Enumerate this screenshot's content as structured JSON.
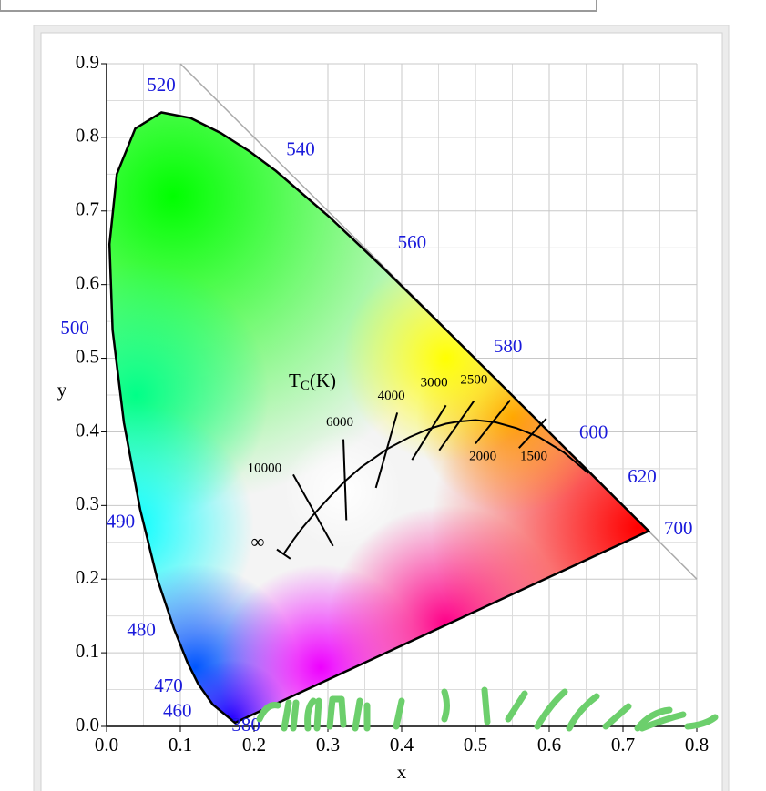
{
  "chart_data": {
    "type": "chromaticity",
    "xlabel": "x",
    "ylabel": "y",
    "xlim": [
      0,
      0.8
    ],
    "ylim": [
      0,
      0.9
    ],
    "xticks": [
      {
        "value": 0,
        "label": "0.0"
      },
      0.1,
      0.2,
      0.3,
      0.4,
      0.5,
      0.6,
      0.7,
      0.8
    ],
    "yticks": [
      {
        "value": 0,
        "label": "0.0"
      },
      0.1,
      0.2,
      0.3,
      0.4,
      0.5,
      0.6,
      0.7,
      0.8,
      0.9
    ],
    "grid": true,
    "spectral_locus": {
      "x": [
        0.1741,
        0.144,
        0.1241,
        0.1096,
        0.0913,
        0.0687,
        0.0454,
        0.0235,
        0.0082,
        0.0039,
        0.0139,
        0.0389,
        0.0743,
        0.1142,
        0.1547,
        0.1929,
        0.2296,
        0.3016,
        0.3731,
        0.4441,
        0.5125,
        0.5752,
        0.627,
        0.6658,
        0.6915,
        0.719,
        0.7347
      ],
      "y": [
        0.005,
        0.0297,
        0.0578,
        0.0868,
        0.1327,
        0.2007,
        0.295,
        0.4127,
        0.5384,
        0.6548,
        0.7502,
        0.812,
        0.8338,
        0.8262,
        0.8059,
        0.7816,
        0.7543,
        0.6923,
        0.6245,
        0.5547,
        0.4866,
        0.4242,
        0.3725,
        0.334,
        0.3083,
        0.2809,
        0.2653
      ]
    },
    "wavelength_labels": [
      {
        "label": 520,
        "x": 0.074,
        "y": 0.869
      },
      {
        "label": 540,
        "x": 0.263,
        "y": 0.782
      },
      {
        "label": 560,
        "x": 0.414,
        "y": 0.655
      },
      {
        "label": 580,
        "x": 0.544,
        "y": 0.514
      },
      {
        "label": 600,
        "x": 0.66,
        "y": 0.397
      },
      {
        "label": 620,
        "x": 0.726,
        "y": 0.337
      },
      {
        "label": 700,
        "x": 0.775,
        "y": 0.267
      },
      {
        "label": 500,
        "x": -0.043,
        "y": 0.539
      },
      {
        "label": 490,
        "x": 0.019,
        "y": 0.276
      },
      {
        "label": 480,
        "x": 0.047,
        "y": 0.129
      },
      {
        "label": 470,
        "x": 0.084,
        "y": 0.053
      },
      {
        "label": 460,
        "x": 0.096,
        "y": 0.019
      },
      {
        "label": 380,
        "x": 0.189,
        "y": 0.0
      }
    ],
    "planckian_locus": {
      "title": [
        "T",
        "C",
        "(K)"
      ],
      "title_x": 0.279,
      "title_y": 0.467,
      "x": [
        0.24,
        0.253,
        0.265,
        0.281,
        0.3,
        0.322,
        0.345,
        0.381,
        0.411,
        0.437,
        0.46,
        0.477,
        0.5,
        0.527,
        0.556,
        0.586,
        0.62,
        0.653
      ],
      "y": [
        0.234,
        0.253,
        0.269,
        0.288,
        0.309,
        0.332,
        0.352,
        0.377,
        0.393,
        0.404,
        0.411,
        0.414,
        0.416,
        0.413,
        0.405,
        0.393,
        0.372,
        0.344
      ],
      "infinity": {
        "label": "∞",
        "x": 0.205,
        "y": 0.248
      }
    },
    "isotherms": [
      {
        "label": 10000,
        "x": [
          0.253,
          0.307
        ],
        "y": [
          0.342,
          0.245
        ],
        "label_x": 0.214,
        "label_y": 0.35
      },
      {
        "label": 6000,
        "x": [
          0.321,
          0.325
        ],
        "y": [
          0.39,
          0.28
        ],
        "label_x": 0.316,
        "label_y": 0.412
      },
      {
        "label": 4000,
        "x": [
          0.394,
          0.365
        ],
        "y": [
          0.426,
          0.324
        ],
        "label_x": 0.386,
        "label_y": 0.448
      },
      {
        "label": 3000,
        "x": [
          0.46,
          0.414
        ],
        "y": [
          0.436,
          0.362
        ],
        "label_x": 0.444,
        "label_y": 0.466
      },
      {
        "label": 2500,
        "x": [
          0.498,
          0.451
        ],
        "y": [
          0.442,
          0.375
        ],
        "label_x": 0.498,
        "label_y": 0.47
      },
      {
        "label": 2000,
        "x": [
          0.547,
          0.5
        ],
        "y": [
          0.443,
          0.384
        ],
        "label_x": 0.51,
        "label_y": 0.366
      },
      {
        "label": 1500,
        "x": [
          0.596,
          0.559
        ],
        "y": [
          0.418,
          0.378
        ],
        "label_x": 0.579,
        "label_y": 0.366
      }
    ]
  }
}
